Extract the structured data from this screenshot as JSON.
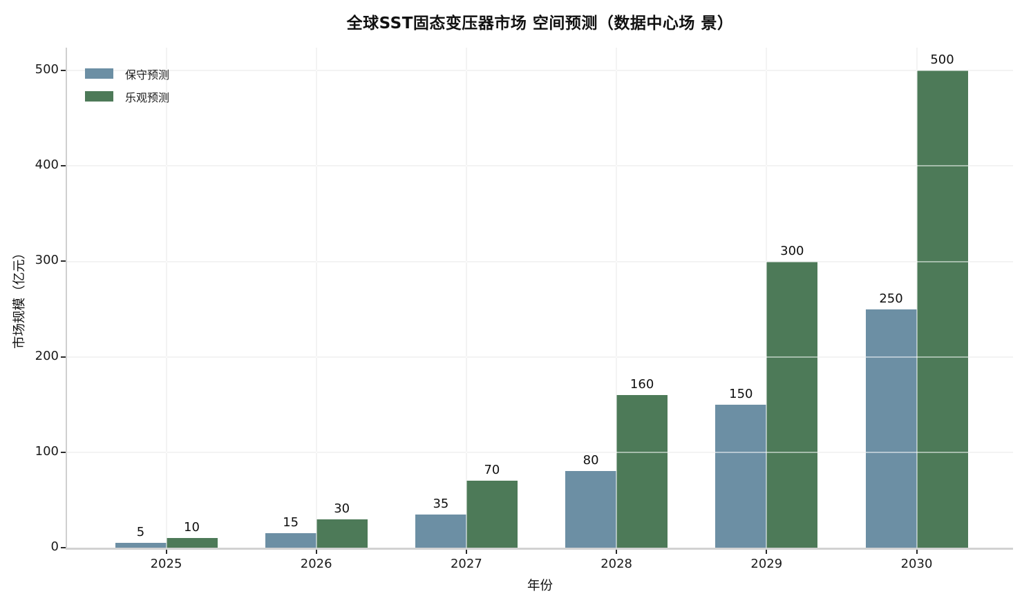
{
  "chart_data": {
    "type": "bar",
    "title": "全球SST固态变压器市场 空间预测（数据中心场 景）",
    "xlabel": "年份",
    "ylabel": "市场规模（亿元）",
    "categories": [
      "2025",
      "2026",
      "2027",
      "2028",
      "2029",
      "2030"
    ],
    "series": [
      {
        "name": "保守预测",
        "color": "#6C8FA4",
        "values": [
          5,
          15,
          35,
          80,
          150,
          250
        ]
      },
      {
        "name": "乐观预测",
        "color": "#4D7A58",
        "values": [
          10,
          30,
          70,
          160,
          300,
          500
        ]
      }
    ],
    "bar_value_labels": true,
    "yticks": [
      0,
      100,
      200,
      300,
      400,
      500
    ],
    "ylim": [
      0,
      524
    ],
    "grid": "both",
    "legend_position": "upper-left",
    "background": "#ffffff"
  }
}
